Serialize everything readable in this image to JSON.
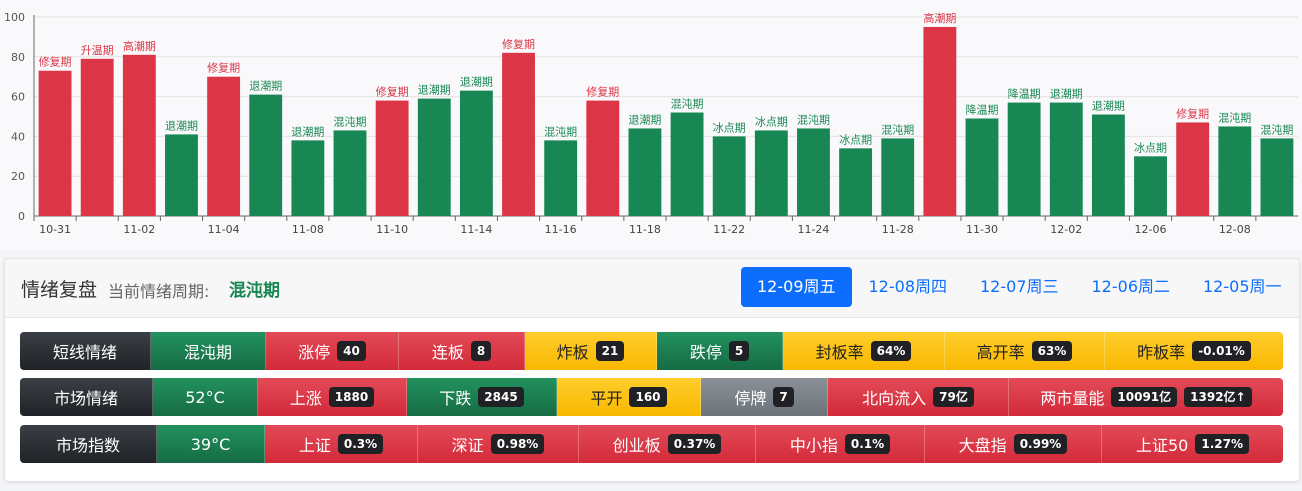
{
  "chart_data": {
    "type": "bar",
    "categories": [
      "10-31",
      "11-01",
      "11-02",
      "11-03",
      "11-04",
      "11-07",
      "11-08",
      "11-09",
      "11-10",
      "11-11",
      "11-14",
      "11-15",
      "11-16",
      "11-17",
      "11-18",
      "11-21",
      "11-22",
      "11-23",
      "11-24",
      "11-25",
      "11-28",
      "11-29",
      "11-30",
      "12-01",
      "12-02",
      "12-05",
      "12-06",
      "12-07",
      "12-08",
      "12-09"
    ],
    "x_tick_labels": [
      "10-31",
      "",
      "11-02",
      "",
      "11-04",
      "",
      "11-08",
      "",
      "11-10",
      "",
      "11-14",
      "",
      "11-16",
      "",
      "11-18",
      "",
      "11-22",
      "",
      "11-24",
      "",
      "11-28",
      "",
      "11-30",
      "",
      "12-02",
      "",
      "12-06",
      "",
      "12-08",
      ""
    ],
    "values": [
      73,
      79,
      81,
      41,
      70,
      61,
      38,
      43,
      58,
      59,
      63,
      82,
      38,
      58,
      44,
      52,
      40,
      43,
      44,
      34,
      39,
      95,
      49,
      57,
      57,
      51,
      30,
      47,
      45,
      39
    ],
    "labels": [
      "修复期",
      "升温期",
      "高潮期",
      "退潮期",
      "修复期",
      "退潮期",
      "退潮期",
      "混沌期",
      "修复期",
      "退潮期",
      "退潮期",
      "修复期",
      "混沌期",
      "修复期",
      "退潮期",
      "混沌期",
      "冰点期",
      "冰点期",
      "混沌期",
      "冰点期",
      "混沌期",
      "高潮期",
      "降温期",
      "降温期",
      "退潮期",
      "退潮期",
      "冰点期",
      "修复期",
      "混沌期",
      "混沌期"
    ],
    "colors": [
      "red",
      "red",
      "red",
      "green",
      "red",
      "green",
      "green",
      "green",
      "red",
      "green",
      "green",
      "red",
      "green",
      "red",
      "green",
      "green",
      "green",
      "green",
      "green",
      "green",
      "green",
      "red",
      "green",
      "green",
      "green",
      "green",
      "green",
      "red",
      "green",
      "green"
    ],
    "ylim": [
      0,
      100
    ],
    "yticks": [
      0,
      20,
      40,
      60,
      80,
      100
    ],
    "red_color": "#dc3545",
    "green_color": "#198754",
    "grid": true,
    "title": "",
    "xlabel": "",
    "ylabel": ""
  },
  "panel": {
    "title": "情绪复盘",
    "subtitle": "当前情绪周期:",
    "current_cycle": "混沌期",
    "tabs": [
      "12-09周五",
      "12-08周四",
      "12-07周三",
      "12-06周二",
      "12-05周一"
    ],
    "active_tab": 0
  },
  "row1": {
    "label": "短线情绪",
    "status": "混沌期",
    "items": [
      {
        "name": "涨停",
        "value": "40"
      },
      {
        "name": "连板",
        "value": "8"
      },
      {
        "name": "炸板",
        "value": "21"
      },
      {
        "name": "跌停",
        "value": "5"
      },
      {
        "name": "封板率",
        "value": "64%"
      },
      {
        "name": "高开率",
        "value": "63%"
      },
      {
        "name": "昨板率",
        "value": "-0.01%"
      }
    ]
  },
  "row2": {
    "label": "市场情绪",
    "temperature": "52°C",
    "items": [
      {
        "name": "上涨",
        "value": "1880"
      },
      {
        "name": "下跌",
        "value": "2845"
      },
      {
        "name": "平开",
        "value": "160"
      },
      {
        "name": "停牌",
        "value": "7"
      },
      {
        "name": "北向流入",
        "value": "79亿"
      },
      {
        "name": "两市量能",
        "value": "10091亿",
        "value2": "1392亿↑"
      }
    ]
  },
  "row3": {
    "label": "市场指数",
    "temperature": "39°C",
    "items": [
      {
        "name": "上证",
        "value": "0.3%"
      },
      {
        "name": "深证",
        "value": "0.98%"
      },
      {
        "name": "创业板",
        "value": "0.37%"
      },
      {
        "name": "中小指",
        "value": "0.1%"
      },
      {
        "name": "大盘指",
        "value": "0.99%"
      },
      {
        "name": "上证50",
        "value": "1.27%"
      }
    ]
  }
}
